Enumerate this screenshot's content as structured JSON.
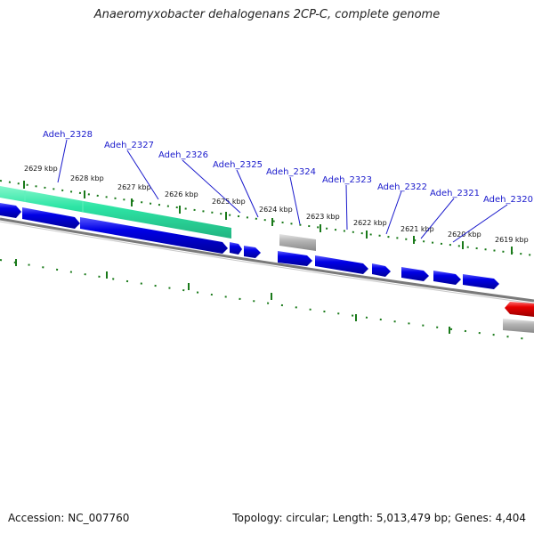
{
  "title": "Anaeromyxobacter dehalogenans 2CP-C, complete genome",
  "accession": "Accession: NC_007760",
  "summary": "Topology: circular; Length: 5,013,479 bp; Genes: 4,404",
  "colors": {
    "forward_gene": "#0000e6",
    "reverse_gene": "#e60000",
    "rna_gene": "#b4b4b4",
    "highlight": "#22e3a0",
    "backbone": "#7a7a7a",
    "ticks": "#1a7a1a",
    "label": "#1a1acc"
  },
  "kbp_labels": [
    "2629 kbp",
    "2628 kbp",
    "2627 kbp",
    "2626 kbp",
    "2625 kbp",
    "2624 kbp",
    "2623 kbp",
    "2622 kbp",
    "2621 kbp",
    "2620 kbp",
    "2619 kbp"
  ],
  "gene_labels": [
    "Adeh_2328",
    "Adeh_2327",
    "Adeh_2326",
    "Adeh_2325",
    "Adeh_2324",
    "Adeh_2323",
    "Adeh_2322",
    "Adeh_2321",
    "Adeh_2320"
  ]
}
